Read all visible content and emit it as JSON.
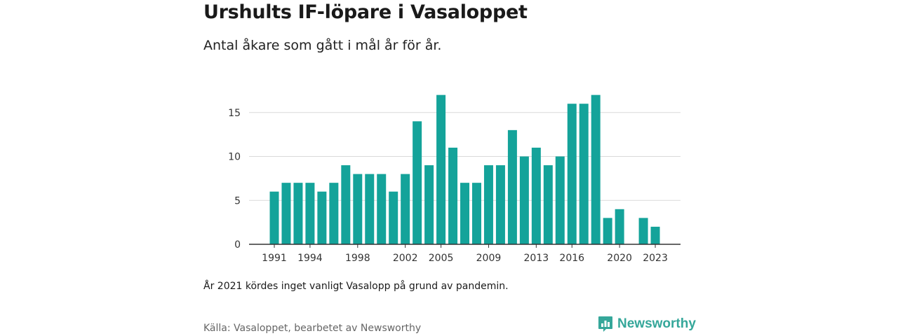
{
  "header": {
    "title": "Urshults IF-löpare i Vasaloppet",
    "subtitle": "Antal åkare som gått i mål år för år."
  },
  "footer": {
    "note": "År 2021 kördes inget vanligt Vasalopp på grund av pandemin.",
    "source": "Källa: Vasaloppet, bearbetet av Newsworthy",
    "brand": "Newsworthy",
    "brand_icon": "newsworthy-logo-icon"
  },
  "colors": {
    "bar": "#14a39a",
    "grid": "#d9d9d9",
    "axis": "#333333",
    "brand": "#35a79a"
  },
  "chart_data": {
    "type": "bar",
    "categories": [
      "1991",
      "1992",
      "1993",
      "1994",
      "1995",
      "1996",
      "1997",
      "1998",
      "1999",
      "2000",
      "2001",
      "2002",
      "2003",
      "2004",
      "2005",
      "2006",
      "2007",
      "2008",
      "2009",
      "2010",
      "2011",
      "2012",
      "2013",
      "2014",
      "2015",
      "2016",
      "2017",
      "2018",
      "2019",
      "2020",
      "2021",
      "2022",
      "2023"
    ],
    "values": [
      6,
      7,
      7,
      7,
      6,
      7,
      9,
      8,
      8,
      8,
      6,
      8,
      14,
      9,
      17,
      11,
      7,
      7,
      9,
      9,
      13,
      10,
      11,
      9,
      10,
      16,
      16,
      17,
      3,
      4,
      null,
      3,
      2
    ],
    "x_tick_labels": [
      "1991",
      "1994",
      "1998",
      "2002",
      "2005",
      "2009",
      "2013",
      "2016",
      "2020",
      "2023"
    ],
    "y_ticks": [
      0,
      5,
      10,
      15
    ],
    "ylim": [
      0,
      17
    ],
    "grid": true,
    "title": "Urshults IF-löpare i Vasaloppet",
    "subtitle": "Antal åkare som gått i mål år för år."
  }
}
